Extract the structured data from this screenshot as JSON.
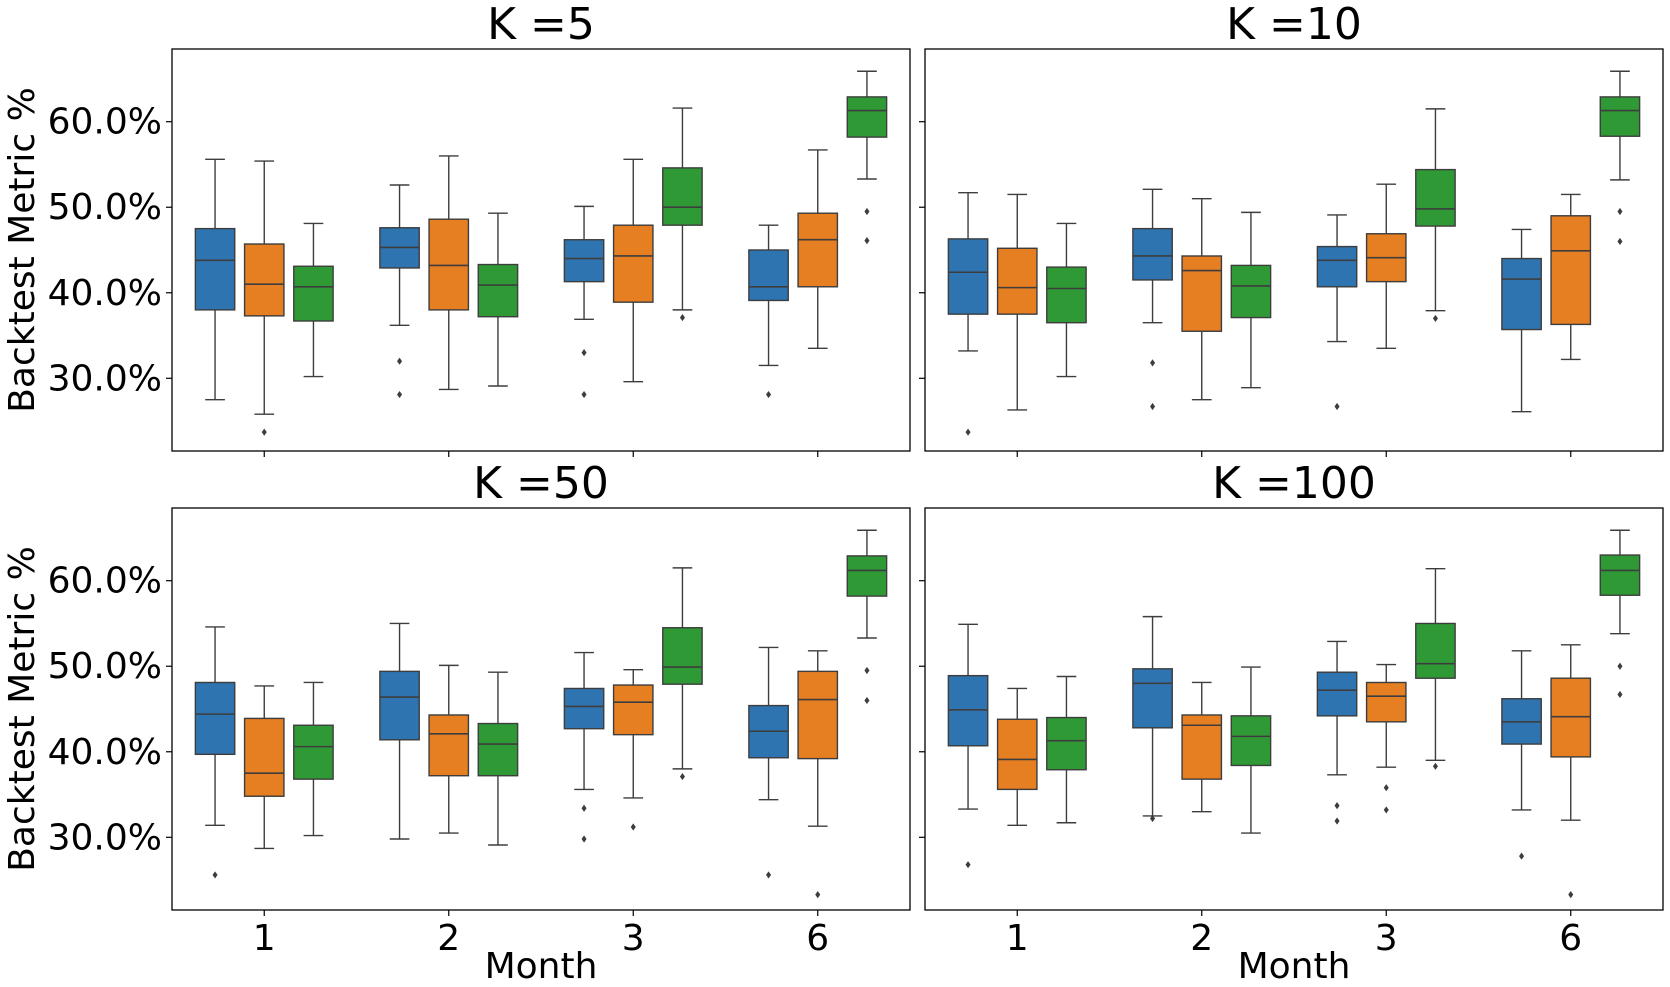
{
  "chart_data": {
    "type": "box",
    "layout": "2x2 grid, shared x and y axes",
    "xlabel": "Month",
    "ylabel": "Backtest Metric %",
    "categories": [
      "1",
      "2",
      "3",
      "6"
    ],
    "ylim": [
      21.5,
      68.5
    ],
    "yticks": [
      30,
      40,
      50,
      60
    ],
    "ytick_labels": [
      "30.0%",
      "40.0%",
      "50.0%",
      "60.0%"
    ],
    "series_colors": [
      "#2e74b0",
      "#e67e22",
      "#2f9a35"
    ],
    "panels": [
      {
        "title": "K =5",
        "boxes": [
          [
            {
              "whislo": 27.5,
              "q1": 38.0,
              "med": 43.8,
              "q3": 47.5,
              "whishi": 55.6,
              "fliers": []
            },
            {
              "whislo": 25.8,
              "q1": 37.3,
              "med": 41.0,
              "q3": 45.7,
              "whishi": 55.4,
              "fliers": [
                23.7
              ]
            },
            {
              "whislo": 30.2,
              "q1": 36.7,
              "med": 40.7,
              "q3": 43.1,
              "whishi": 48.1,
              "fliers": []
            }
          ],
          [
            {
              "whislo": 36.2,
              "q1": 42.9,
              "med": 45.3,
              "q3": 47.6,
              "whishi": 52.6,
              "fliers": [
                32.0,
                28.1
              ]
            },
            {
              "whislo": 28.7,
              "q1": 38.0,
              "med": 43.2,
              "q3": 48.6,
              "whishi": 56.0,
              "fliers": []
            },
            {
              "whislo": 29.1,
              "q1": 37.2,
              "med": 40.9,
              "q3": 43.3,
              "whishi": 49.3,
              "fliers": []
            }
          ],
          [
            {
              "whislo": 36.9,
              "q1": 41.3,
              "med": 44.0,
              "q3": 46.2,
              "whishi": 50.1,
              "fliers": [
                33.0,
                28.1
              ]
            },
            {
              "whislo": 29.6,
              "q1": 38.9,
              "med": 44.3,
              "q3": 47.9,
              "whishi": 55.6,
              "fliers": []
            },
            {
              "whislo": 38.0,
              "q1": 47.9,
              "med": 50.0,
              "q3": 54.6,
              "whishi": 61.6,
              "fliers": [
                37.1
              ]
            }
          ],
          [
            {
              "whislo": 31.5,
              "q1": 39.1,
              "med": 40.7,
              "q3": 45.0,
              "whishi": 47.9,
              "fliers": [
                28.1
              ]
            },
            {
              "whislo": 33.5,
              "q1": 40.7,
              "med": 46.2,
              "q3": 49.3,
              "whishi": 56.7,
              "fliers": []
            },
            {
              "whislo": 53.3,
              "q1": 58.2,
              "med": 61.3,
              "q3": 62.9,
              "whishi": 65.9,
              "fliers": [
                49.5,
                46.1
              ]
            }
          ]
        ]
      },
      {
        "title": "K =10",
        "boxes": [
          [
            {
              "whislo": 33.2,
              "q1": 37.5,
              "med": 42.4,
              "q3": 46.3,
              "whishi": 51.7,
              "fliers": [
                23.7
              ]
            },
            {
              "whislo": 26.3,
              "q1": 37.5,
              "med": 40.6,
              "q3": 45.2,
              "whishi": 51.5,
              "fliers": []
            },
            {
              "whislo": 30.2,
              "q1": 36.5,
              "med": 40.5,
              "q3": 43.0,
              "whishi": 48.1,
              "fliers": []
            }
          ],
          [
            {
              "whislo": 36.5,
              "q1": 41.5,
              "med": 44.3,
              "q3": 47.5,
              "whishi": 52.1,
              "fliers": [
                31.8,
                26.7
              ]
            },
            {
              "whislo": 27.5,
              "q1": 35.5,
              "med": 42.6,
              "q3": 44.3,
              "whishi": 51.0,
              "fliers": []
            },
            {
              "whislo": 28.9,
              "q1": 37.1,
              "med": 40.8,
              "q3": 43.2,
              "whishi": 49.4,
              "fliers": []
            }
          ],
          [
            {
              "whislo": 34.3,
              "q1": 40.7,
              "med": 43.8,
              "q3": 45.4,
              "whishi": 49.1,
              "fliers": [
                26.7
              ]
            },
            {
              "whislo": 33.5,
              "q1": 41.3,
              "med": 44.1,
              "q3": 46.9,
              "whishi": 52.7,
              "fliers": []
            },
            {
              "whislo": 37.9,
              "q1": 47.8,
              "med": 49.8,
              "q3": 54.4,
              "whishi": 61.5,
              "fliers": [
                37.0
              ]
            }
          ],
          [
            {
              "whislo": 26.1,
              "q1": 35.7,
              "med": 41.6,
              "q3": 44.0,
              "whishi": 47.4,
              "fliers": []
            },
            {
              "whislo": 32.2,
              "q1": 36.3,
              "med": 44.9,
              "q3": 49.0,
              "whishi": 51.5,
              "fliers": []
            },
            {
              "whislo": 53.2,
              "q1": 58.3,
              "med": 61.3,
              "q3": 62.9,
              "whishi": 65.9,
              "fliers": [
                49.5,
                46.0
              ]
            }
          ]
        ]
      },
      {
        "title": "K =50",
        "boxes": [
          [
            {
              "whislo": 31.4,
              "q1": 39.7,
              "med": 44.4,
              "q3": 48.1,
              "whishi": 54.6,
              "fliers": [
                25.6
              ]
            },
            {
              "whislo": 28.7,
              "q1": 34.8,
              "med": 37.5,
              "q3": 43.9,
              "whishi": 47.7,
              "fliers": []
            },
            {
              "whislo": 30.2,
              "q1": 36.8,
              "med": 40.6,
              "q3": 43.1,
              "whishi": 48.1,
              "fliers": []
            }
          ],
          [
            {
              "whislo": 29.8,
              "q1": 41.4,
              "med": 46.4,
              "q3": 49.4,
              "whishi": 55.0,
              "fliers": []
            },
            {
              "whislo": 30.5,
              "q1": 37.2,
              "med": 42.1,
              "q3": 44.3,
              "whishi": 50.1,
              "fliers": []
            },
            {
              "whislo": 29.1,
              "q1": 37.2,
              "med": 40.9,
              "q3": 43.3,
              "whishi": 49.3,
              "fliers": []
            }
          ],
          [
            {
              "whislo": 35.6,
              "q1": 42.7,
              "med": 45.3,
              "q3": 47.4,
              "whishi": 51.6,
              "fliers": [
                33.4,
                29.8
              ]
            },
            {
              "whislo": 34.6,
              "q1": 42.0,
              "med": 45.8,
              "q3": 47.8,
              "whishi": 49.6,
              "fliers": [
                31.2
              ]
            },
            {
              "whislo": 38.0,
              "q1": 47.9,
              "med": 49.9,
              "q3": 54.5,
              "whishi": 61.5,
              "fliers": [
                37.1
              ]
            }
          ],
          [
            {
              "whislo": 34.4,
              "q1": 39.3,
              "med": 42.4,
              "q3": 45.4,
              "whishi": 52.2,
              "fliers": [
                25.6
              ]
            },
            {
              "whislo": 31.3,
              "q1": 39.2,
              "med": 46.1,
              "q3": 49.4,
              "whishi": 51.8,
              "fliers": [
                23.3
              ]
            },
            {
              "whislo": 53.3,
              "q1": 58.2,
              "med": 61.2,
              "q3": 62.9,
              "whishi": 65.9,
              "fliers": [
                49.5,
                46.0
              ]
            }
          ]
        ]
      },
      {
        "title": "K =100",
        "boxes": [
          [
            {
              "whislo": 33.3,
              "q1": 40.7,
              "med": 44.9,
              "q3": 48.9,
              "whishi": 54.9,
              "fliers": [
                26.8
              ]
            },
            {
              "whislo": 31.4,
              "q1": 35.6,
              "med": 39.1,
              "q3": 43.8,
              "whishi": 47.4,
              "fliers": []
            },
            {
              "whislo": 31.7,
              "q1": 37.9,
              "med": 41.3,
              "q3": 44.0,
              "whishi": 48.8,
              "fliers": []
            }
          ],
          [
            {
              "whislo": 32.5,
              "q1": 42.8,
              "med": 48.0,
              "q3": 49.7,
              "whishi": 55.8,
              "fliers": [
                32.2
              ]
            },
            {
              "whislo": 33.0,
              "q1": 36.8,
              "med": 43.1,
              "q3": 44.3,
              "whishi": 48.1,
              "fliers": []
            },
            {
              "whislo": 30.5,
              "q1": 38.4,
              "med": 41.8,
              "q3": 44.2,
              "whishi": 49.9,
              "fliers": []
            }
          ],
          [
            {
              "whislo": 37.3,
              "q1": 44.2,
              "med": 47.2,
              "q3": 49.3,
              "whishi": 52.9,
              "fliers": [
                33.7,
                31.9
              ]
            },
            {
              "whislo": 38.2,
              "q1": 43.5,
              "med": 46.5,
              "q3": 48.1,
              "whishi": 50.2,
              "fliers": [
                35.8,
                33.2
              ]
            },
            {
              "whislo": 39.0,
              "q1": 48.6,
              "med": 50.3,
              "q3": 55.0,
              "whishi": 61.4,
              "fliers": [
                38.3
              ]
            }
          ],
          [
            {
              "whislo": 33.2,
              "q1": 40.9,
              "med": 43.5,
              "q3": 46.2,
              "whishi": 51.8,
              "fliers": [
                27.8
              ]
            },
            {
              "whislo": 32.0,
              "q1": 39.4,
              "med": 44.1,
              "q3": 48.6,
              "whishi": 52.5,
              "fliers": [
                23.3
              ]
            },
            {
              "whislo": 53.8,
              "q1": 58.3,
              "med": 61.2,
              "q3": 63.0,
              "whishi": 65.9,
              "fliers": [
                50.0,
                46.7
              ]
            }
          ]
        ]
      }
    ]
  }
}
